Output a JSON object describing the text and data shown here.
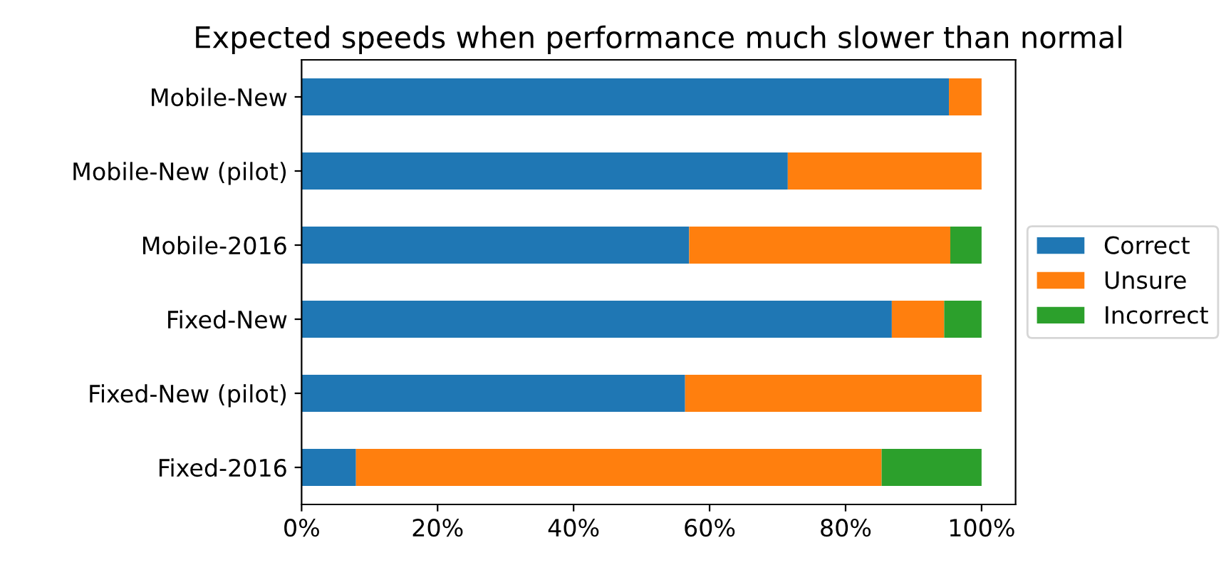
{
  "chart_data": {
    "type": "bar",
    "orientation": "horizontal",
    "stacked": true,
    "title": "Expected speeds when performance much slower than normal",
    "categories": [
      "Mobile-New",
      "Mobile-New (pilot)",
      "Mobile-2016",
      "Fixed-New",
      "Fixed-New (pilot)",
      "Fixed-2016"
    ],
    "series": [
      {
        "name": "Correct",
        "color": "#1f77b4",
        "values": [
          95.2,
          71.5,
          57.0,
          86.8,
          56.4,
          8.0
        ]
      },
      {
        "name": "Unsure",
        "color": "#ff7f0e",
        "values": [
          4.8,
          28.5,
          38.4,
          7.7,
          43.6,
          77.3
        ]
      },
      {
        "name": "Incorrect",
        "color": "#2ca02c",
        "values": [
          0,
          0,
          4.6,
          5.5,
          0,
          14.7
        ]
      }
    ],
    "xlim": [
      0,
      105
    ],
    "xticks": [
      {
        "value": 0,
        "label": "0%"
      },
      {
        "value": 20,
        "label": "20%"
      },
      {
        "value": 40,
        "label": "40%"
      },
      {
        "value": 60,
        "label": "60%"
      },
      {
        "value": 80,
        "label": "80%"
      },
      {
        "value": 100,
        "label": "100%"
      }
    ],
    "legend": "right",
    "grid": false
  }
}
